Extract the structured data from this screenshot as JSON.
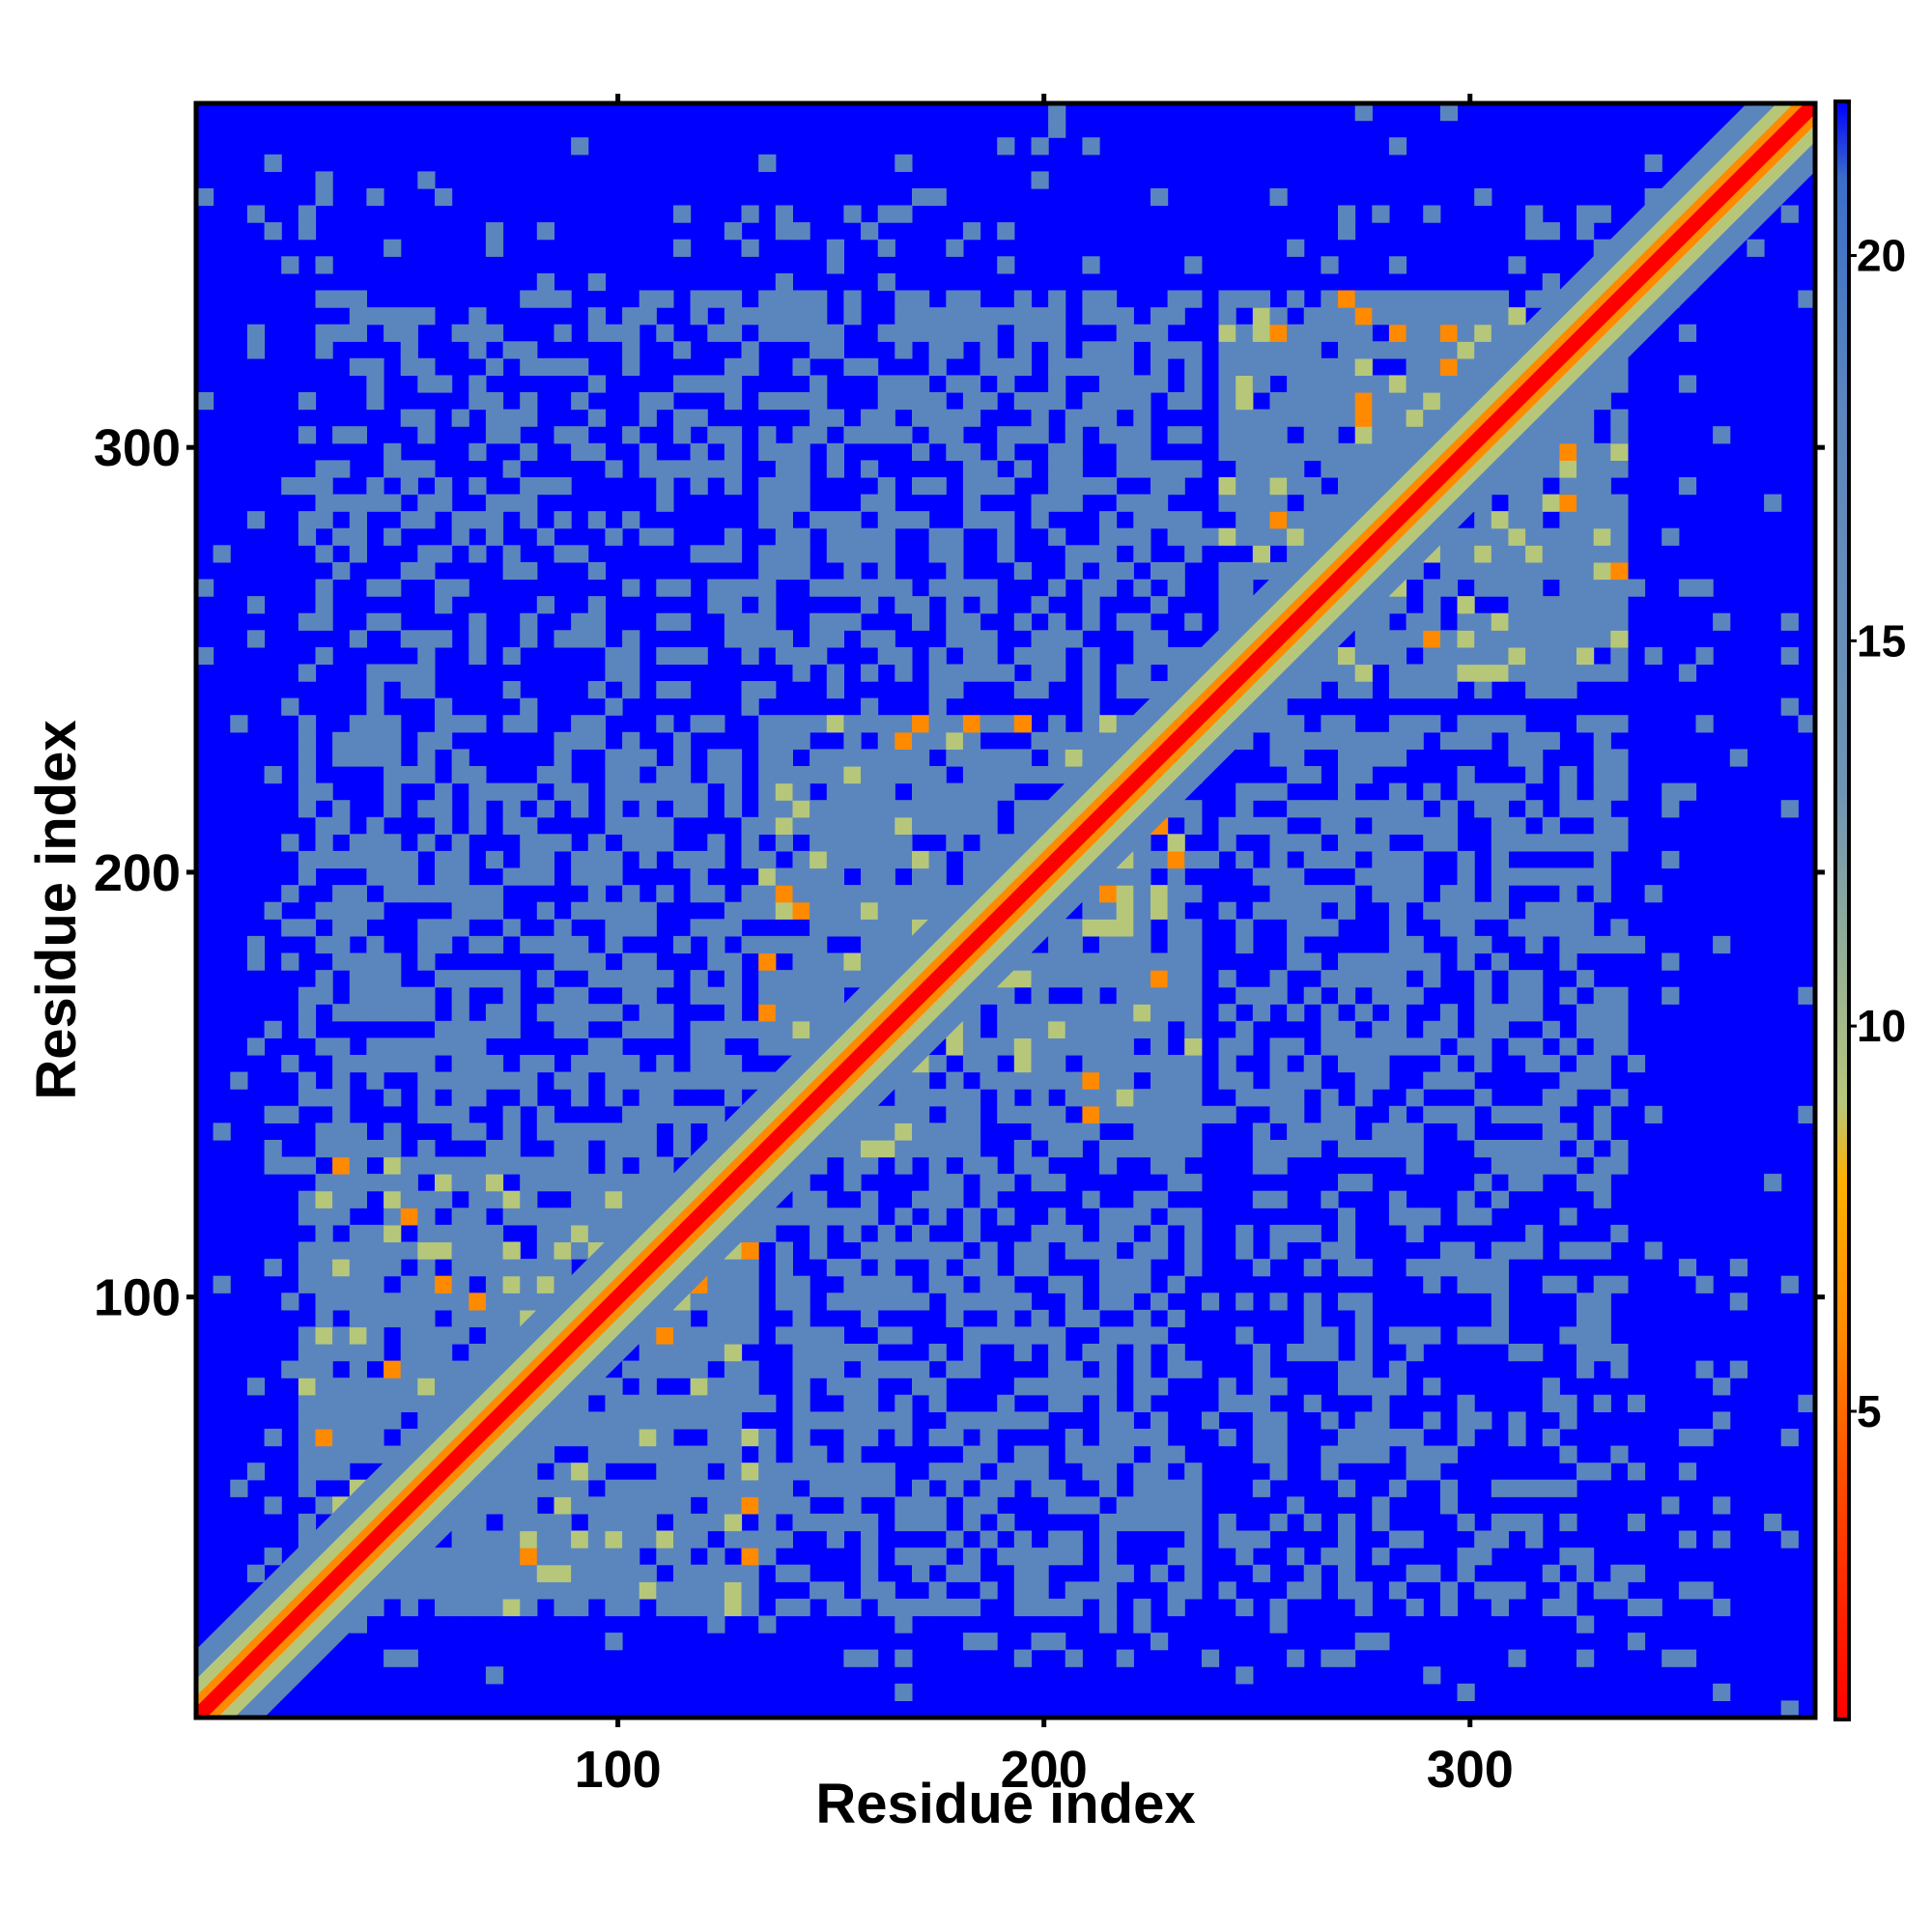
{
  "chart_data": {
    "type": "heatmap",
    "title": "",
    "xlabel": "Residue index",
    "ylabel": "Residue index",
    "xlim": [
      1,
      381
    ],
    "ylim": [
      1,
      381
    ],
    "x_ticks": [
      100,
      200,
      300
    ],
    "y_ticks": [
      100,
      200,
      300
    ],
    "x_tick_labels": [
      "100",
      "200",
      "300"
    ],
    "y_tick_labels": [
      "100",
      "200",
      "300"
    ],
    "colorbar": {
      "range": [
        1,
        22
      ],
      "ticks": [
        5,
        10,
        15,
        20
      ],
      "tick_labels": [
        "5",
        "10",
        "15",
        "20"
      ],
      "colors": [
        {
          "value": 1,
          "color": "#ff0000"
        },
        {
          "value": 4,
          "color": "#ff4a00"
        },
        {
          "value": 6,
          "color": "#ff8a00"
        },
        {
          "value": 8,
          "color": "#ffb000"
        },
        {
          "value": 9,
          "color": "#b7c77a"
        },
        {
          "value": 13,
          "color": "#6f95b4"
        },
        {
          "value": 18,
          "color": "#5b86bd"
        },
        {
          "value": 21,
          "color": "#3b6ec8"
        },
        {
          "value": 22,
          "color": "#0000ff"
        }
      ]
    },
    "background_color": "#0000ff",
    "diagonal_color": "#ff0000",
    "contact_color": "#5b86bd",
    "domains": [
      {
        "start": 25,
        "end": 132
      },
      {
        "start": 133,
        "end": 236
      },
      {
        "start": 238,
        "end": 335
      }
    ],
    "grid": false
  }
}
